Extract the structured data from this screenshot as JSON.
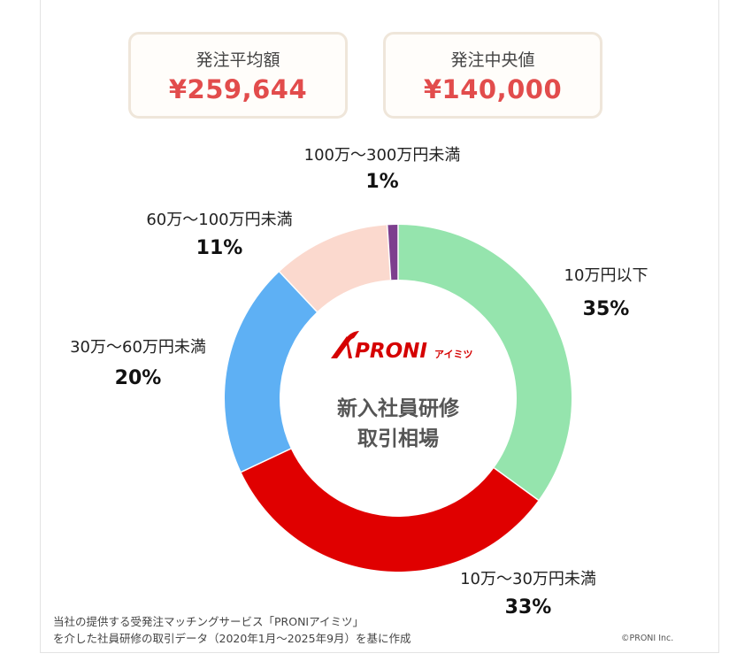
{
  "stats": {
    "avg_label": "発注平均額",
    "avg_value": "¥259,644",
    "median_label": "発注中央値",
    "median_value": "¥140,000"
  },
  "center": {
    "brand": "PRONI",
    "brand_sub": "アイミツ",
    "line1": "新入社員研修",
    "line2": "取引相場"
  },
  "footnote": {
    "line1": "当社の提供する受発注マッチングサービス「PRONIアイミツ」",
    "line2": "を介した社員研修の取引データ（2020年1月〜2025年9月）を基に作成"
  },
  "copyright": "©PRONI Inc.",
  "chart_data": {
    "type": "pie",
    "variant": "donut",
    "categories": [
      "10万円以下",
      "10万〜30万円未満",
      "30万〜60万円未満",
      "60万〜100万円未満",
      "100万〜300万円未満"
    ],
    "values": [
      35,
      33,
      20,
      11,
      1
    ],
    "value_labels": [
      "35%",
      "33%",
      "20%",
      "11%",
      "1%"
    ],
    "colors": [
      "#95e4ad",
      "#e00000",
      "#5eb0f4",
      "#fbd9ce",
      "#7d3f8e"
    ]
  }
}
